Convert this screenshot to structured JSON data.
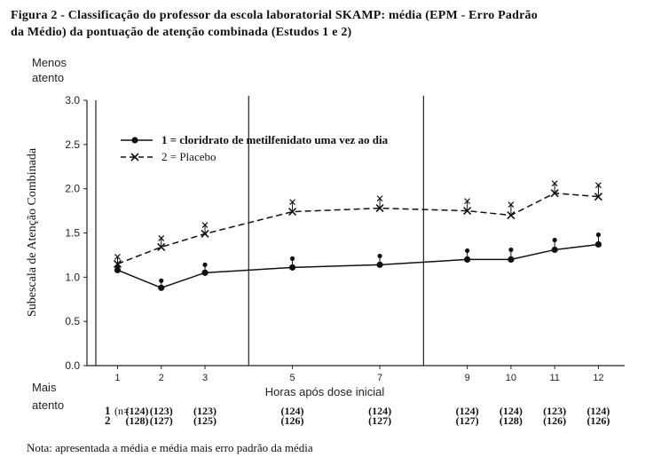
{
  "figure": {
    "title_line1": "Figura 2 - Classificação do professor da escola laboratorial SKAMP: média (EPM - Erro Padrão",
    "title_line2": "da Médio) da pontuação de atenção combinada (Estudos 1 e 2)",
    "note": "Nota: apresentada a média e média mais erro padrão da média"
  },
  "chart_data": {
    "type": "line",
    "xlabel": "Horas após dose inicial",
    "ylabel": "Subescala de Atenção Combinada",
    "ylim": [
      0,
      3
    ],
    "yticks": [
      "0.0",
      "0.5",
      "1.0",
      "1.5",
      "2.0",
      "2.5",
      "3.0"
    ],
    "x": [
      1,
      2,
      3,
      5,
      7,
      9,
      10,
      11,
      12
    ],
    "xtick_labels": [
      "1",
      "2",
      "3",
      "5",
      "7",
      "9",
      "10",
      "11",
      "12"
    ],
    "top_annotation": [
      "Menos",
      "atento"
    ],
    "bottom_annotation": [
      "Mais",
      "atento"
    ],
    "legend_position": "top-left",
    "vertical_lines_x": [
      4,
      8
    ],
    "series": [
      {
        "name": "1 = cloridrato de metilfenidato uma vez ao dia",
        "style": "solid",
        "marker": "circle",
        "values": [
          1.08,
          0.88,
          1.05,
          1.11,
          1.14,
          1.2,
          1.2,
          1.31,
          1.37
        ],
        "upper": [
          1.12,
          0.96,
          1.14,
          1.21,
          1.24,
          1.3,
          1.31,
          1.42,
          1.48
        ]
      },
      {
        "name": "2 = Placebo",
        "style": "dashed",
        "marker": "x",
        "values": [
          1.15,
          1.34,
          1.49,
          1.74,
          1.78,
          1.75,
          1.7,
          1.95,
          1.91
        ],
        "upper": [
          1.23,
          1.44,
          1.59,
          1.85,
          1.89,
          1.86,
          1.82,
          2.06,
          2.04
        ]
      }
    ],
    "sample_sizes": {
      "row_labels": [
        "1",
        "2"
      ],
      "n_prefix": "(n=",
      "group1": [
        "124",
        "123",
        "123",
        "124",
        "124",
        "124",
        "124",
        "123",
        "124"
      ],
      "group2": [
        "128",
        "127",
        "125",
        "126",
        "127",
        "127",
        "128",
        "126",
        "126"
      ]
    },
    "colors": {
      "line": "#111111",
      "axis": "#222222"
    }
  }
}
